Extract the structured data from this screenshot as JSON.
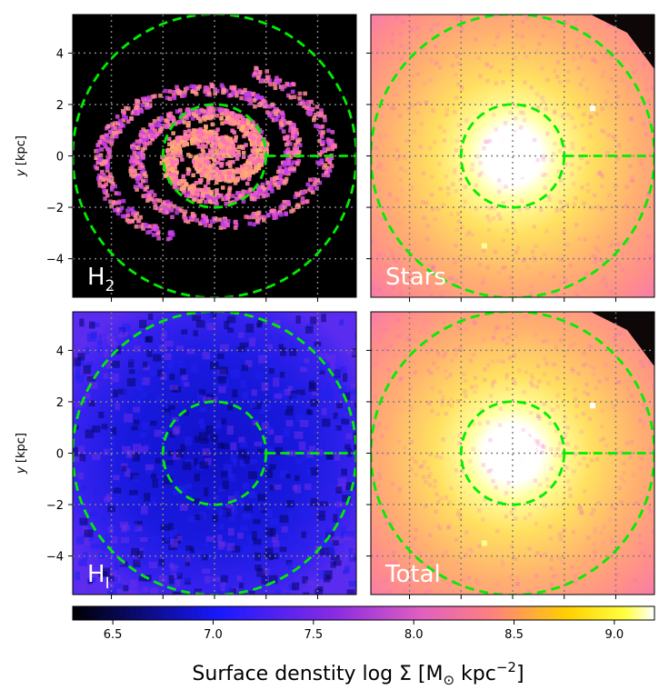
{
  "chart_data": {
    "type": "heatmap",
    "layout": "2x2 panel grid with shared horizontal colorbar",
    "panels": [
      {
        "id": "h2",
        "label_main": "H",
        "label_sub": "2",
        "structure": "two-armed spiral, black background, arms reach ~4 kpc",
        "ylabel": "y [kpc]"
      },
      {
        "id": "stars",
        "label_main": "Stars",
        "label_sub": "",
        "structure": "bright central bulge, smooth disk",
        "ylabel": ""
      },
      {
        "id": "hi",
        "label_main": "H",
        "label_sub": "I",
        "structure": "diffuse blue-purple disk",
        "ylabel": "y [kpc]"
      },
      {
        "id": "total",
        "label_main": "Total",
        "label_sub": "",
        "structure": "bright central bulge, smooth disk",
        "ylabel": ""
      }
    ],
    "axes": {
      "xlim": [
        -5.5,
        5.5
      ],
      "ylim": [
        -5.5,
        5.5
      ],
      "y_ticks": [
        -4,
        -2,
        0,
        2,
        4
      ],
      "y_tick_labels": [
        "−4",
        "−2",
        "0",
        "2",
        "4"
      ],
      "grid": true,
      "grid_style": "dotted grey",
      "grid_lines": [
        -4,
        -2,
        0,
        2,
        4
      ]
    },
    "overlays": {
      "circle_radii_kpc": [
        2,
        5.5
      ],
      "radial_line_from_kpc": 2,
      "radial_line_to_kpc": 5.5,
      "color": "#00ee00",
      "style": "dashed"
    },
    "colorbar": {
      "colormap": "gnuplot2",
      "range": [
        6.3,
        9.2
      ],
      "ticks": [
        6.5,
        7.0,
        7.5,
        8.0,
        8.5,
        9.0
      ],
      "tick_labels": [
        "6.5",
        "7.0",
        "7.5",
        "8.0",
        "8.5",
        "9.0"
      ],
      "label_text": "Surface denstity log Σ [M",
      "label_sun": "⊙",
      "label_unit": " kpc",
      "label_exp": "−2",
      "label_close": "]"
    }
  }
}
